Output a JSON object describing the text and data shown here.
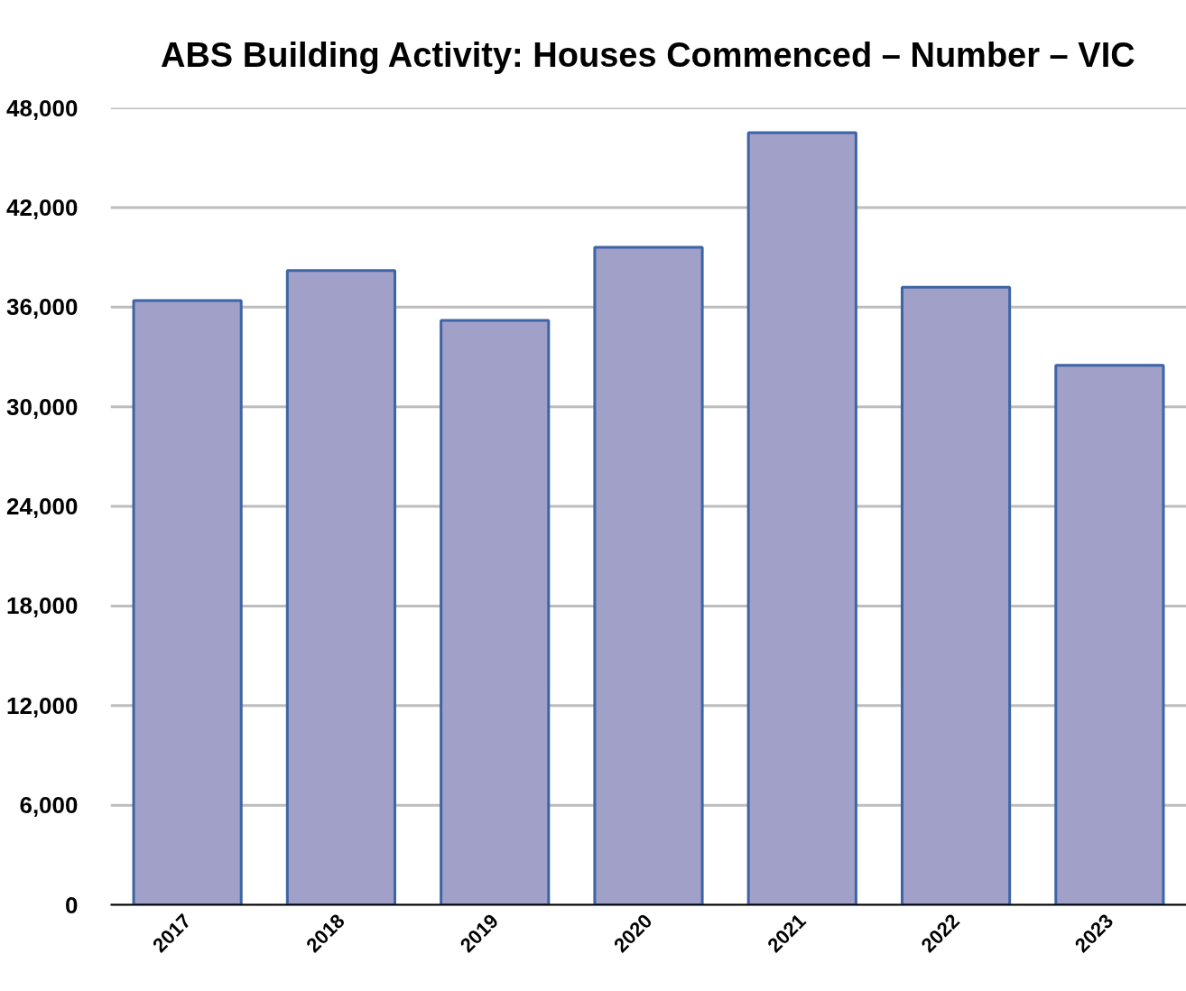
{
  "chart_data": {
    "type": "bar",
    "title": "ABS Building Activity: Houses Commenced – Number – VIC",
    "categories": [
      "2017",
      "2018",
      "2019",
      "2020",
      "2021",
      "2022",
      "2023"
    ],
    "values": [
      36400,
      38200,
      35200,
      39600,
      46500,
      37200,
      32500
    ],
    "color": "#a0a0c8",
    "ylim": [
      0,
      48000
    ],
    "yticks": [
      0,
      {
        "value": 6000,
        "label": "6,000"
      },
      {
        "value": 12000,
        "label": "12,000"
      },
      {
        "value": 18000,
        "label": "18,000"
      },
      {
        "value": 24000,
        "label": "24,000"
      },
      {
        "value": 30000,
        "label": "30,000"
      },
      {
        "value": 36000,
        "label": "36,000"
      },
      {
        "value": 42000,
        "label": "42,000"
      },
      {
        "value": 48000,
        "label": "48,000"
      }
    ],
    "grid": "y"
  }
}
